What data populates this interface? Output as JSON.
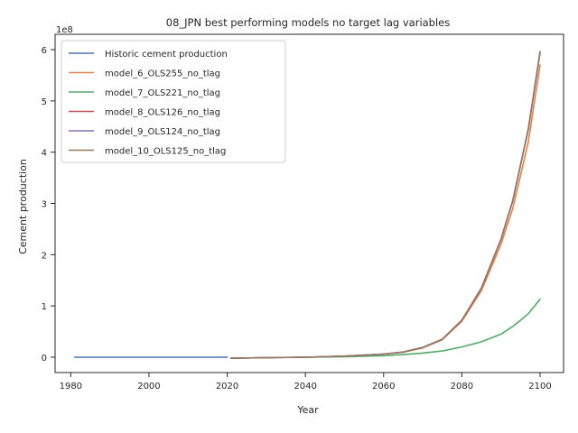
{
  "chart_data": {
    "type": "line",
    "title": "08_JPN best performing models no target lag variables",
    "xlabel": "Year",
    "ylabel": "Cement production",
    "y_offset_label": "1e8",
    "xlim": [
      1976,
      2106
    ],
    "ylim": [
      -0.3,
      6.3
    ],
    "y_unit_multiplier": 100000000,
    "xticks": [
      1980,
      2000,
      2020,
      2040,
      2060,
      2080,
      2100
    ],
    "yticks": [
      0,
      1,
      2,
      3,
      4,
      5,
      6
    ],
    "grid": false,
    "legend_position": "top-left",
    "series": [
      {
        "name": "Historic cement production",
        "color": "#4c72b0",
        "x": [
          1981,
          2020
        ],
        "y": [
          0.0,
          0.0
        ]
      },
      {
        "name": "model_6_OLS255_no_tlag",
        "color": "#dd8452",
        "x": [
          2021,
          2030,
          2040,
          2050,
          2060,
          2065,
          2070,
          2075,
          2080,
          2085,
          2090,
          2093,
          2095,
          2097,
          2100
        ],
        "y": [
          -0.02,
          -0.01,
          0.0,
          0.02,
          0.06,
          0.1,
          0.18,
          0.34,
          0.7,
          1.3,
          2.2,
          2.9,
          3.55,
          4.2,
          5.7
        ]
      },
      {
        "name": "model_7_OLS221_no_tlag",
        "color": "#55a868",
        "x": [
          2021,
          2030,
          2040,
          2050,
          2060,
          2065,
          2070,
          2075,
          2080,
          2085,
          2090,
          2093,
          2095,
          2097,
          2100
        ],
        "y": [
          -0.02,
          -0.01,
          0.0,
          0.01,
          0.03,
          0.05,
          0.08,
          0.12,
          0.2,
          0.3,
          0.45,
          0.6,
          0.72,
          0.85,
          1.13
        ]
      },
      {
        "name": "model_8_OLS126_no_tlag",
        "color": "#c44e52",
        "x": [
          2021,
          2030,
          2040,
          2050,
          2060,
          2065,
          2070,
          2075,
          2080,
          2085,
          2090,
          2093,
          2095,
          2097,
          2100
        ],
        "y": [
          -0.02,
          -0.01,
          0.0,
          0.02,
          0.06,
          0.1,
          0.19,
          0.35,
          0.72,
          1.35,
          2.3,
          3.05,
          3.75,
          4.45,
          5.95
        ]
      },
      {
        "name": "model_9_OLS124_no_tlag",
        "color": "#8172b3",
        "x": [
          2021,
          2030,
          2040,
          2050,
          2060,
          2065,
          2070,
          2075,
          2080,
          2085,
          2090,
          2093,
          2095,
          2097,
          2100
        ],
        "y": [
          -0.02,
          -0.01,
          0.0,
          0.02,
          0.06,
          0.1,
          0.19,
          0.35,
          0.72,
          1.35,
          2.3,
          3.05,
          3.75,
          4.45,
          5.94
        ]
      },
      {
        "name": "model_10_OLS125_no_tlag",
        "color": "#937860",
        "x": [
          2021,
          2030,
          2040,
          2050,
          2060,
          2065,
          2070,
          2075,
          2080,
          2085,
          2090,
          2093,
          2095,
          2097,
          2100
        ],
        "y": [
          -0.02,
          -0.01,
          0.0,
          0.02,
          0.06,
          0.1,
          0.19,
          0.35,
          0.72,
          1.35,
          2.3,
          3.05,
          3.75,
          4.45,
          5.96
        ]
      }
    ]
  }
}
